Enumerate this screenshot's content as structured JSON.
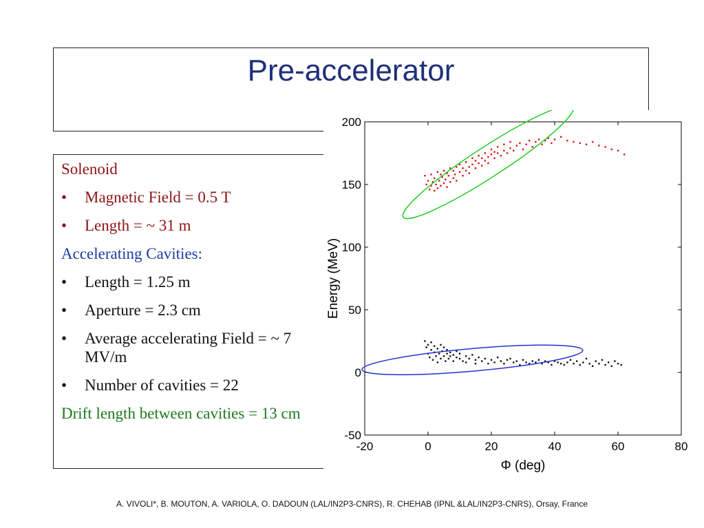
{
  "slide": {
    "title": "Pre-accelerator",
    "footer": "A. VIVOLI*, B. MOUTON, A. VARIOLA,  O. DADOUN (LAL/IN2P3-CNRS), R. CHEHAB (IPNL &LAL/IN2P3-CNRS), Orsay, France"
  },
  "content": {
    "bullet_char": "•",
    "solenoid_heading": "Solenoid",
    "solenoid_items": [
      "Magnetic Field = 0.5 T",
      "Length = ~ 31 m"
    ],
    "cavities_heading": "Accelerating Cavities:",
    "cavities_items": [
      "Length = 1.25 m",
      "Aperture = 2.3 cm",
      "Average accelerating Field = ~ 7 MV/m",
      "Number of cavities = 22"
    ],
    "drift_text": "Drift length between  cavities = 13 cm"
  },
  "chart_data": {
    "type": "scatter",
    "xlabel": "Φ (deg)",
    "ylabel": "Energy (MeV)",
    "xlim": [
      -20,
      80
    ],
    "ylim": [
      -50,
      200
    ],
    "xticks": [
      -20,
      0,
      20,
      40,
      60,
      80
    ],
    "yticks": [
      -50,
      0,
      50,
      100,
      150,
      200
    ],
    "grid": false,
    "series": [
      {
        "color": "#dd1111",
        "points": [
          [
            -1,
            157
          ],
          [
            -0.5,
            150
          ],
          [
            0,
            153
          ],
          [
            0.5,
            146
          ],
          [
            1,
            158
          ],
          [
            1,
            149
          ],
          [
            1.5,
            152
          ],
          [
            2,
            145
          ],
          [
            2,
            155
          ],
          [
            2.5,
            150
          ],
          [
            3,
            160
          ],
          [
            3,
            147
          ],
          [
            3.5,
            153
          ],
          [
            4,
            149
          ],
          [
            4,
            158
          ],
          [
            4.5,
            156
          ],
          [
            5,
            151
          ],
          [
            5,
            161
          ],
          [
            5.5,
            154
          ],
          [
            6,
            148
          ],
          [
            6,
            159
          ],
          [
            6.5,
            157
          ],
          [
            7,
            152
          ],
          [
            7,
            163
          ],
          [
            8,
            155
          ],
          [
            8,
            161
          ],
          [
            8.5,
            158
          ],
          [
            9,
            164
          ],
          [
            9,
            153
          ],
          [
            10,
            160
          ],
          [
            10,
            166
          ],
          [
            11,
            157
          ],
          [
            11,
            163
          ],
          [
            12,
            161
          ],
          [
            12,
            168
          ],
          [
            13,
            164
          ],
          [
            13,
            159
          ],
          [
            14,
            166
          ],
          [
            14,
            171
          ],
          [
            15,
            163
          ],
          [
            15,
            169
          ],
          [
            16,
            167
          ],
          [
            16,
            173
          ],
          [
            17,
            165
          ],
          [
            17,
            171
          ],
          [
            18,
            169
          ],
          [
            18,
            175
          ],
          [
            19,
            172
          ],
          [
            19,
            167
          ],
          [
            20,
            174
          ],
          [
            20,
            178
          ],
          [
            21,
            171
          ],
          [
            21,
            176
          ],
          [
            22,
            175
          ],
          [
            22,
            180
          ],
          [
            23,
            173
          ],
          [
            24,
            177
          ],
          [
            24,
            182
          ],
          [
            25,
            175
          ],
          [
            26,
            179
          ],
          [
            26,
            184
          ],
          [
            27,
            177
          ],
          [
            28,
            181
          ],
          [
            29,
            183
          ],
          [
            30,
            178
          ],
          [
            31,
            182
          ],
          [
            32,
            185
          ],
          [
            33,
            180
          ],
          [
            34,
            184
          ],
          [
            35,
            186
          ],
          [
            36,
            182
          ],
          [
            37,
            185
          ],
          [
            38,
            187
          ],
          [
            39,
            183
          ],
          [
            40,
            186
          ],
          [
            42,
            188
          ],
          [
            44,
            185
          ],
          [
            46,
            184
          ],
          [
            48,
            183
          ],
          [
            50,
            182
          ],
          [
            52,
            184
          ],
          [
            54,
            181
          ],
          [
            56,
            180
          ],
          [
            58,
            178
          ],
          [
            60,
            177
          ],
          [
            62,
            174
          ]
        ]
      },
      {
        "color": "#111111",
        "points": [
          [
            -1,
            25
          ],
          [
            -0.5,
            20
          ],
          [
            0,
            15
          ],
          [
            0,
            22
          ],
          [
            0.5,
            12
          ],
          [
            1,
            18
          ],
          [
            1,
            24
          ],
          [
            1.5,
            10
          ],
          [
            2,
            16
          ],
          [
            2,
            21
          ],
          [
            2.5,
            13
          ],
          [
            3,
            19
          ],
          [
            3,
            8
          ],
          [
            3.5,
            15
          ],
          [
            4,
            22
          ],
          [
            4,
            11
          ],
          [
            4.5,
            17
          ],
          [
            5,
            13
          ],
          [
            5,
            20
          ],
          [
            5.5,
            9
          ],
          [
            6,
            15
          ],
          [
            6,
            18
          ],
          [
            6.5,
            11
          ],
          [
            7,
            16
          ],
          [
            7,
            13
          ],
          [
            8,
            14
          ],
          [
            8,
            9
          ],
          [
            9,
            12
          ],
          [
            9,
            17
          ],
          [
            10,
            11
          ],
          [
            10,
            15
          ],
          [
            11,
            9
          ],
          [
            12,
            13
          ],
          [
            12,
            8
          ],
          [
            13,
            11
          ],
          [
            14,
            14
          ],
          [
            15,
            10
          ],
          [
            15,
            7
          ],
          [
            16,
            12
          ],
          [
            17,
            9
          ],
          [
            18,
            11
          ],
          [
            19,
            7
          ],
          [
            20,
            10
          ],
          [
            21,
            8
          ],
          [
            22,
            12
          ],
          [
            23,
            9
          ],
          [
            24,
            7
          ],
          [
            25,
            10
          ],
          [
            26,
            11
          ],
          [
            27,
            8
          ],
          [
            28,
            9
          ],
          [
            29,
            6
          ],
          [
            30,
            10
          ],
          [
            31,
            8
          ],
          [
            32,
            7
          ],
          [
            33,
            9
          ],
          [
            34,
            8
          ],
          [
            35,
            10
          ],
          [
            36,
            7
          ],
          [
            37,
            9
          ],
          [
            38,
            8
          ],
          [
            39,
            6
          ],
          [
            40,
            9
          ],
          [
            41,
            8
          ],
          [
            42,
            7
          ],
          [
            43,
            6
          ],
          [
            44,
            8
          ],
          [
            45,
            10
          ],
          [
            46,
            7
          ],
          [
            47,
            9
          ],
          [
            48,
            6
          ],
          [
            49,
            8
          ],
          [
            50,
            11
          ],
          [
            51,
            7
          ],
          [
            52,
            5
          ],
          [
            53,
            9
          ],
          [
            54,
            7
          ],
          [
            55,
            10
          ],
          [
            56,
            6
          ],
          [
            57,
            8
          ],
          [
            58,
            5
          ],
          [
            59,
            9
          ],
          [
            60,
            7
          ],
          [
            61,
            6
          ]
        ]
      }
    ],
    "ellipses": [
      {
        "color": "#22cc22",
        "cx": 19,
        "cy": 168,
        "rx": 32,
        "ry": 12,
        "angle_deg": 33
      },
      {
        "color": "#2233cc",
        "cx": 14,
        "cy": 10,
        "rx": 35,
        "ry": 9,
        "angle_deg": 5
      }
    ]
  }
}
